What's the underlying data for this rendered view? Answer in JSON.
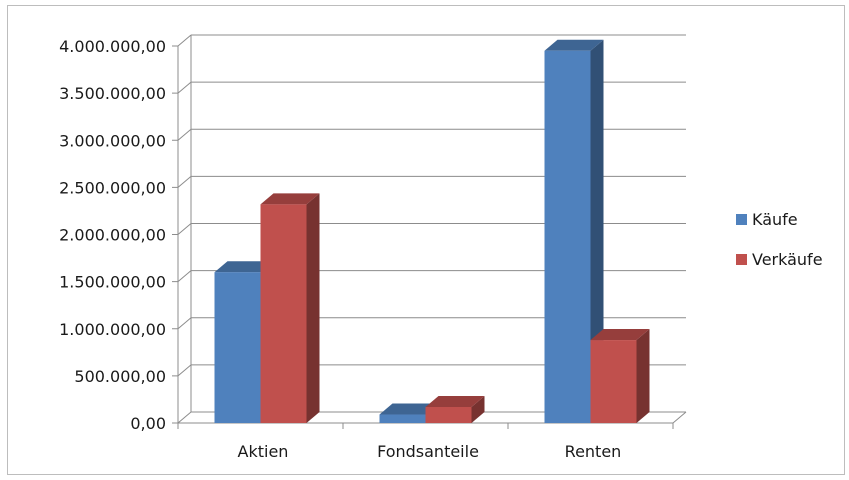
{
  "chart_data": {
    "type": "bar",
    "style": "3d-clustered-column",
    "categories": [
      "Aktien",
      "Fondsanteile",
      "Renten"
    ],
    "series": [
      {
        "name": "Käufe",
        "values": [
          1600000,
          90000,
          3950000
        ],
        "color": "#4f81bd"
      },
      {
        "name": "Verkäufe",
        "values": [
          2320000,
          170000,
          880000
        ],
        "color": "#c0504d"
      }
    ],
    "y_ticks": [
      "0,00",
      "500.000,00",
      "1.000.000,00",
      "1.500.000,00",
      "2.000.000,00",
      "2.500.000,00",
      "3.000.000,00",
      "3.500.000,00",
      "4.000.000,00"
    ],
    "ylim": [
      0,
      4000000
    ],
    "grid": true,
    "legend_position": "right"
  }
}
